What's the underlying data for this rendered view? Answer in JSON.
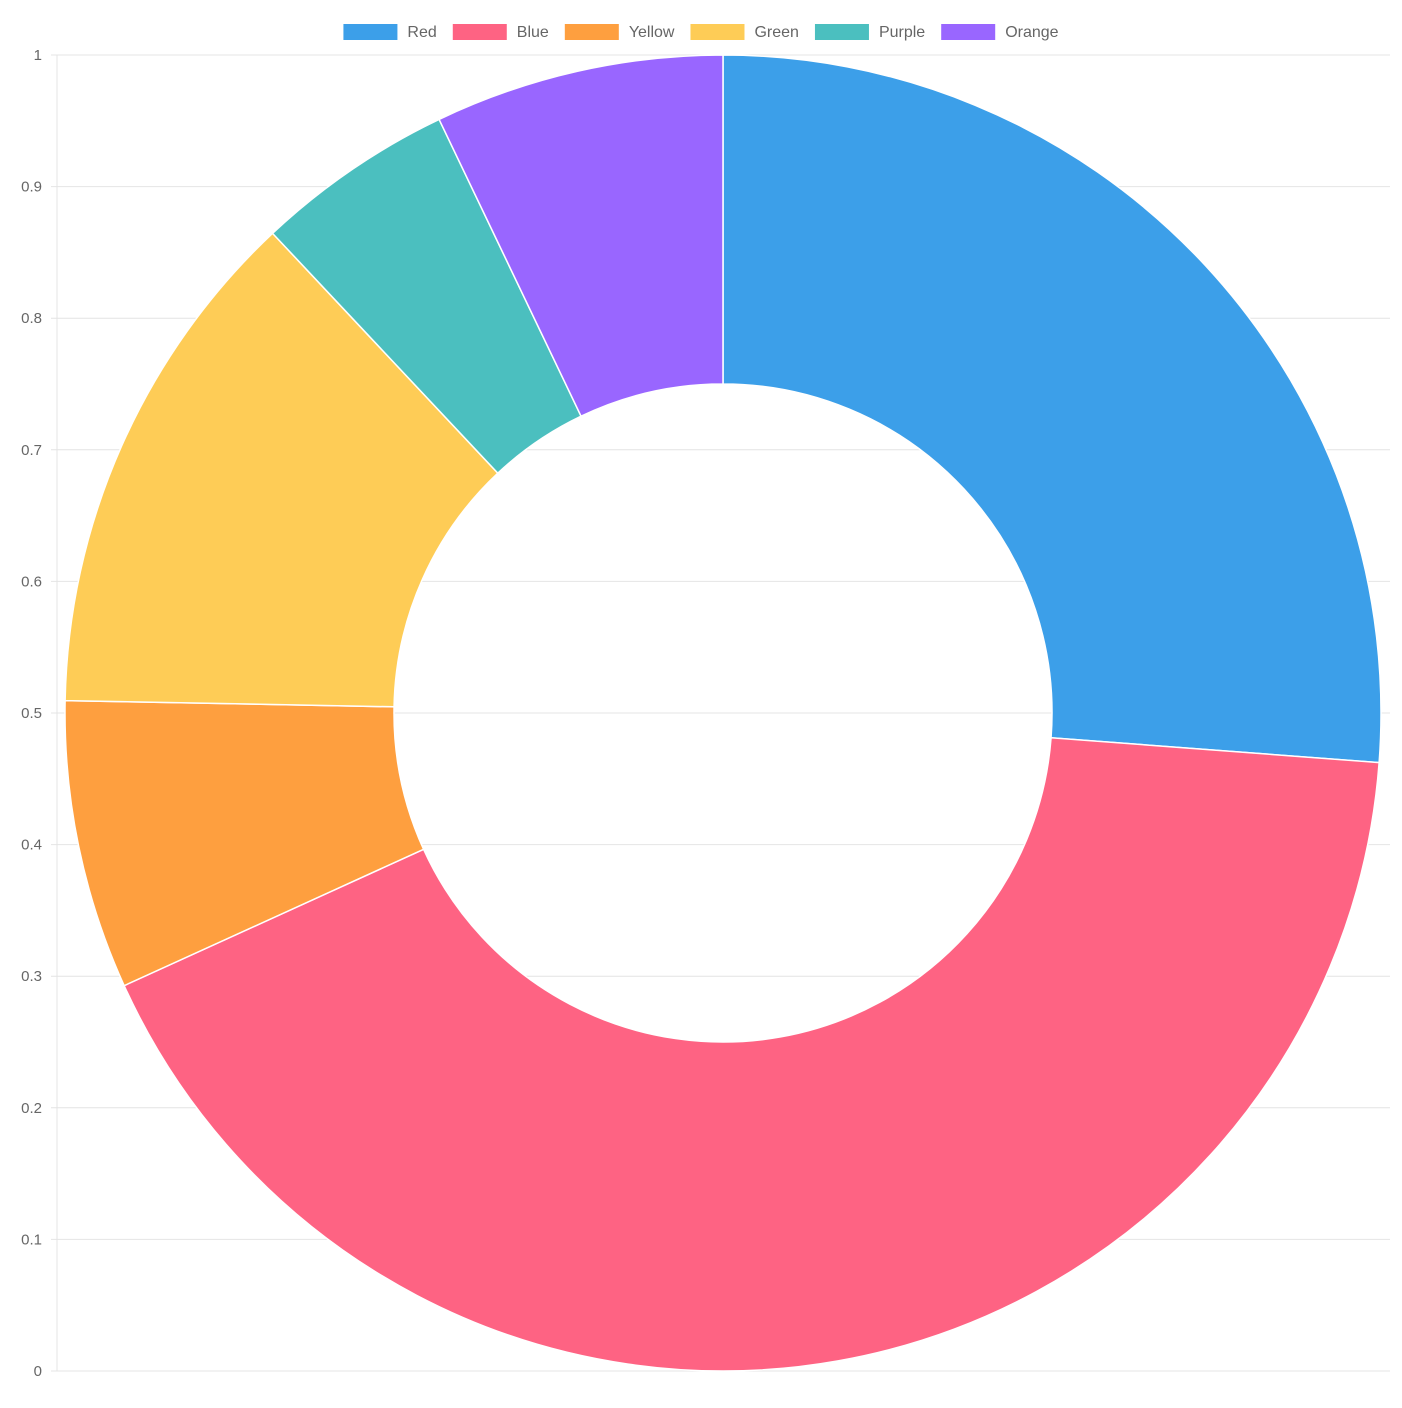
{
  "chart_data": {
    "type": "doughnut",
    "categories": [
      "Red",
      "Blue",
      "Yellow",
      "Green",
      "Purple",
      "Orange"
    ],
    "values": [
      26.2,
      42.0,
      7.1,
      12.7,
      4.9,
      7.1
    ],
    "colors": [
      "#3c9fe9",
      "#fe6383",
      "#fe9f3f",
      "#fecc56",
      "#4bbfbf",
      "#9966ff"
    ],
    "legend_position": "top",
    "y_axis": {
      "ticks": [
        "0",
        "0.1",
        "0.2",
        "0.3",
        "0.4",
        "0.5",
        "0.6",
        "0.7",
        "0.8",
        "0.9",
        "1"
      ]
    },
    "grid": true
  }
}
